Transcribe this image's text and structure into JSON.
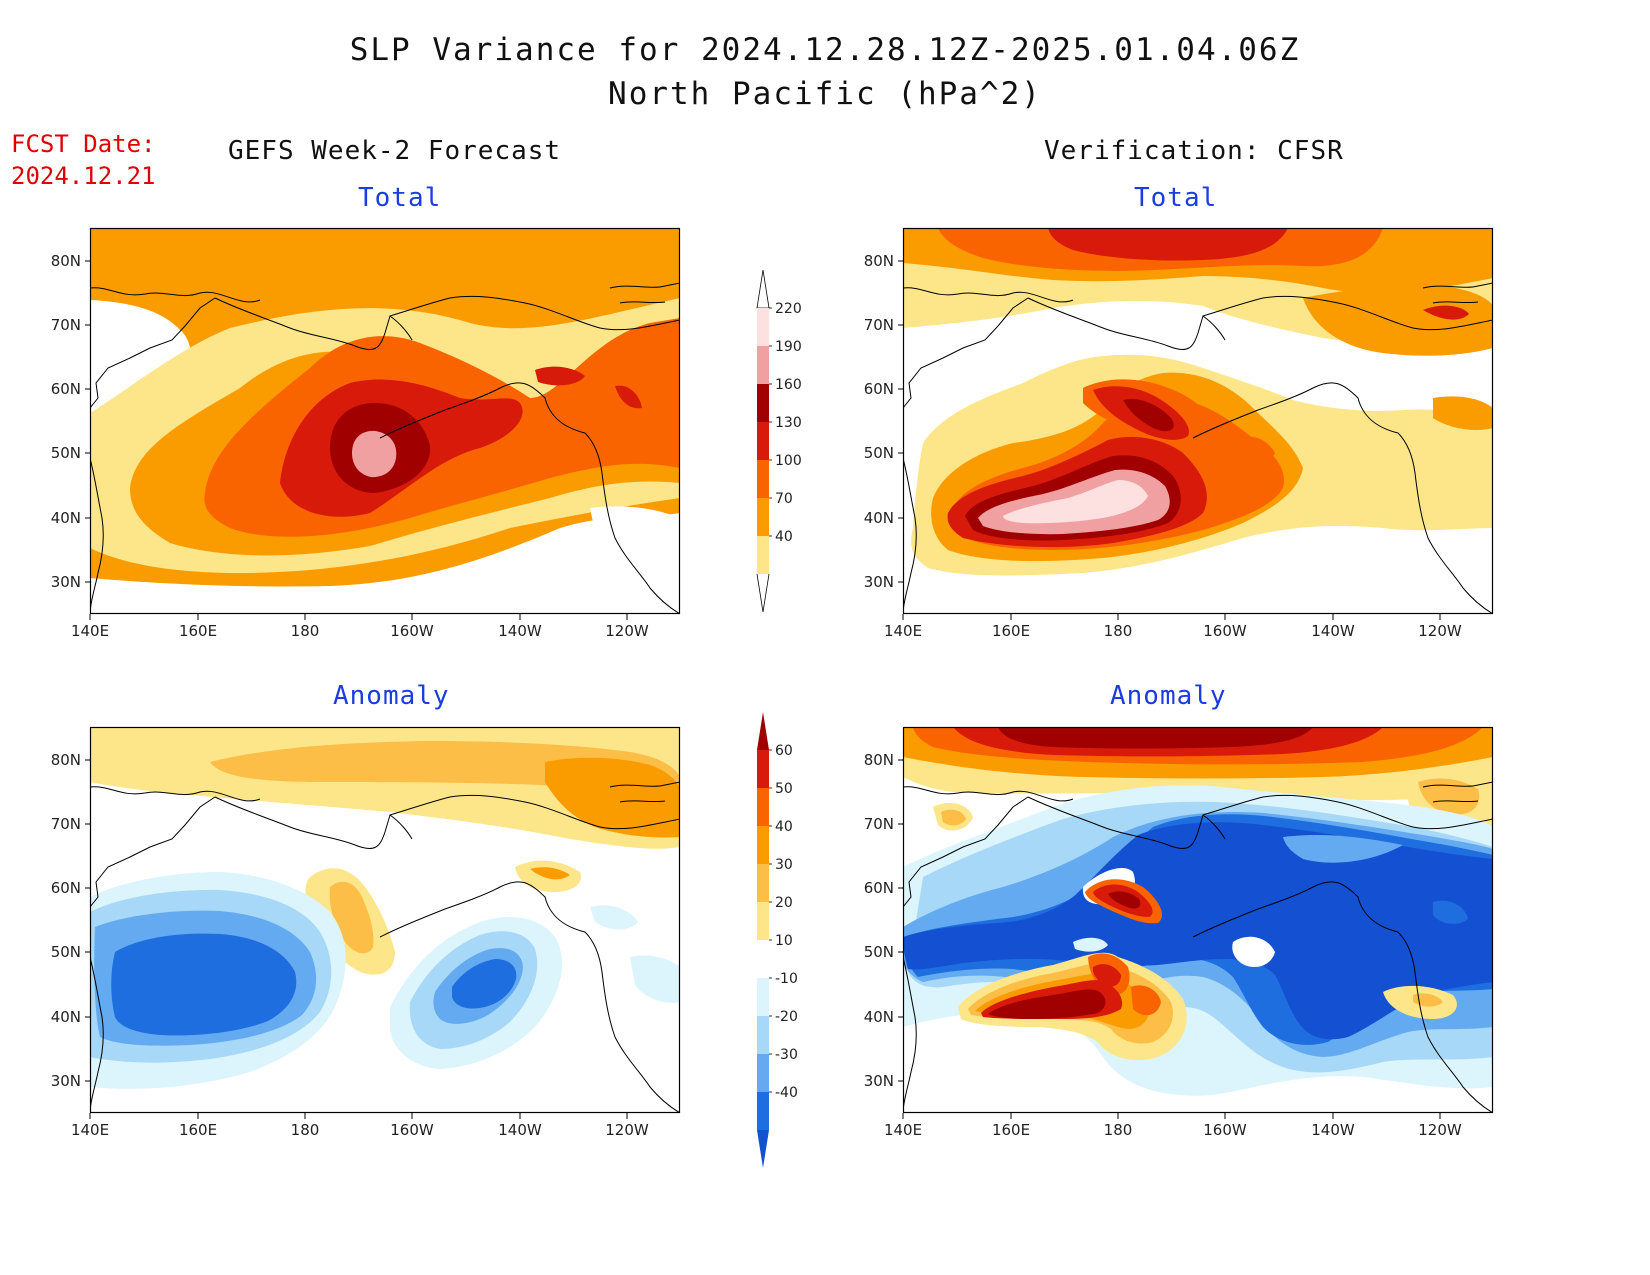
{
  "title": {
    "line1": "SLP Variance for 2024.12.28.12Z-2025.01.04.06Z",
    "line2": "North Pacific (hPa^2)"
  },
  "forecast_date": {
    "label": "FCST Date:",
    "value": "2024.12.21"
  },
  "columns": {
    "left": "GEFS Week-2 Forecast",
    "right": "Verification: CFSR"
  },
  "panel_titles": {
    "total": "Total",
    "anomaly": "Anomaly"
  },
  "axes": {
    "lat_labels": [
      "80N",
      "70N",
      "60N",
      "50N",
      "40N",
      "30N"
    ],
    "lon_labels": [
      "140E",
      "160E",
      "180",
      "160W",
      "140W",
      "120W"
    ]
  },
  "colorbars": {
    "total": {
      "labels": [
        "220",
        "190",
        "160",
        "130",
        "100",
        "70",
        "40"
      ],
      "colors": [
        "#fde0e0",
        "#f0a0a0",
        "#a00000",
        "#d81a0a",
        "#fa6400",
        "#fa9c00",
        "#fde68a"
      ]
    },
    "anomaly": {
      "labels": [
        "60",
        "50",
        "40",
        "30",
        "20",
        "10",
        "-10",
        "-20",
        "-30",
        "-40"
      ],
      "colors": [
        "#a00000",
        "#d81a0a",
        "#fa6400",
        "#fa9c00",
        "#fcbe46",
        "#fde68a",
        "#ffffff",
        "#dcf4fc",
        "#a8d8f8",
        "#64aaf0",
        "#1e6ee0",
        "#1450d2"
      ]
    }
  },
  "colors": {
    "title": "#111111",
    "forecast_date": "#e00000",
    "subtitle": "#1a3ce0"
  }
}
